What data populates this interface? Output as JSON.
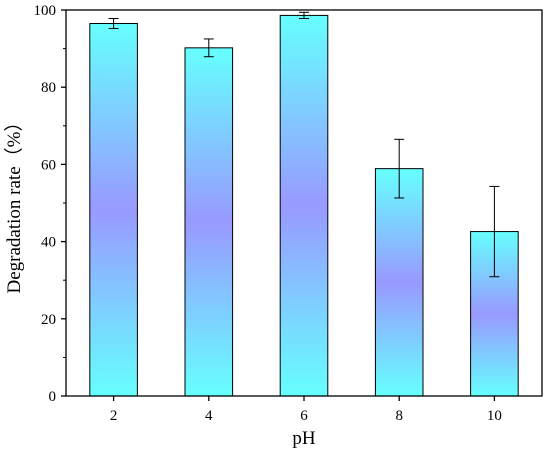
{
  "chart_data": {
    "type": "bar",
    "xlabel": "pH",
    "ylabel": "Degradation rate（%）",
    "categories": [
      "2",
      "4",
      "6",
      "8",
      "10"
    ],
    "values": [
      96.5,
      90.2,
      98.6,
      58.9,
      42.6
    ],
    "errors": [
      1.3,
      2.3,
      0.8,
      7.6,
      11.7
    ],
    "ylim": [
      0,
      100
    ],
    "yticks": [
      0,
      20,
      40,
      60,
      80,
      100
    ],
    "grid": false,
    "legend": "none",
    "bar_gradient": {
      "edge": "#66ffff",
      "middle": "#9999ff"
    },
    "bar_outline": "#000000"
  }
}
